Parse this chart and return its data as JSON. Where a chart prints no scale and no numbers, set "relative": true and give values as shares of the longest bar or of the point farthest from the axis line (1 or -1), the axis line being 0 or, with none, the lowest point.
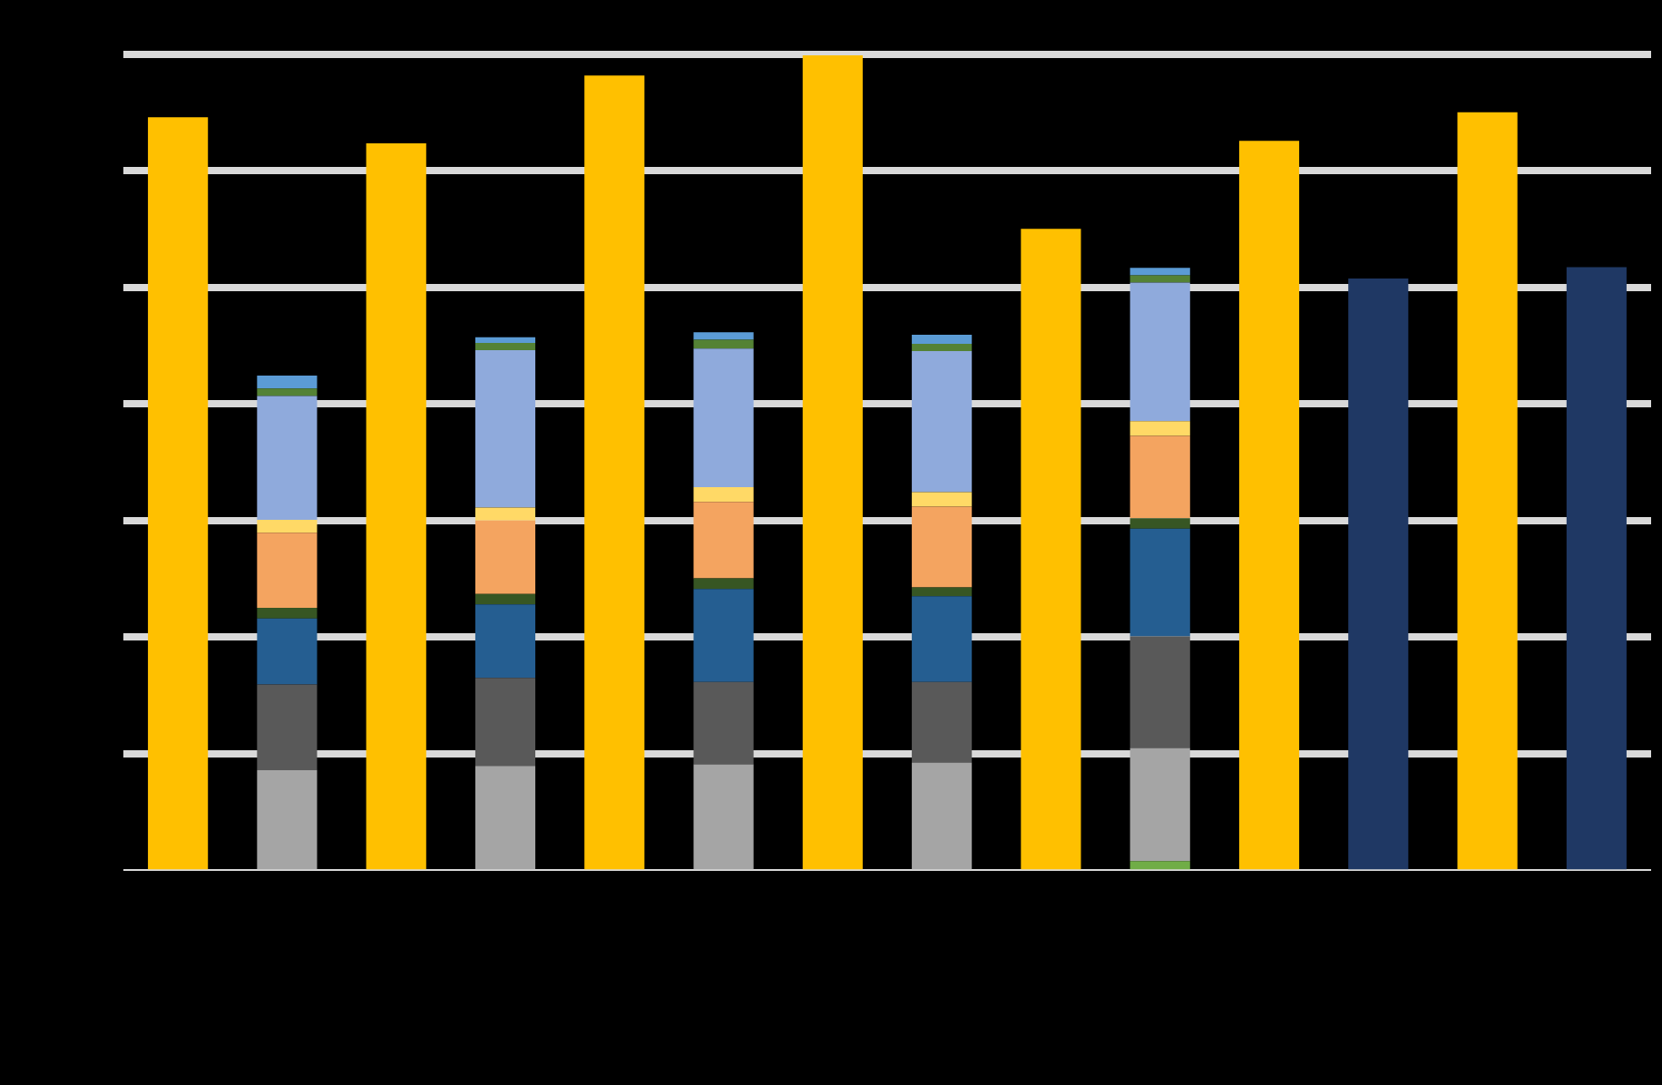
{
  "chart_data": {
    "type": "bar",
    "relative": true,
    "stacked": true,
    "grid": "y",
    "legend": false,
    "categories": [
      null,
      null,
      null,
      null,
      null,
      null,
      null,
      null,
      null,
      null,
      null,
      null,
      null,
      null
    ],
    "series": [
      {
        "color": "#ffc000",
        "values": [
          0.924,
          null,
          0.892,
          null,
          0.975,
          null,
          1,
          null,
          0.787,
          null,
          0.895,
          null,
          0.93,
          null
        ]
      },
      {
        "color": "#1f3864",
        "values": [
          null,
          null,
          null,
          null,
          null,
          null,
          null,
          null,
          null,
          null,
          null,
          0.726,
          null,
          0.74
        ]
      },
      {
        "color": "#70ad47",
        "values": [
          null,
          0,
          null,
          0,
          null,
          0,
          null,
          0,
          null,
          0.011,
          null,
          null,
          null,
          null
        ]
      },
      {
        "color": "#a5a5a5",
        "values": [
          null,
          0.123,
          null,
          0.128,
          null,
          0.13,
          null,
          0.132,
          null,
          0.139,
          null,
          null,
          null,
          null
        ]
      },
      {
        "color": "#595959",
        "values": [
          null,
          0.105,
          null,
          0.108,
          null,
          0.101,
          null,
          0.099,
          null,
          0.137,
          null,
          null,
          null,
          null
        ]
      },
      {
        "color": "#255e91",
        "values": [
          null,
          0.081,
          null,
          0.09,
          null,
          0.114,
          null,
          0.105,
          null,
          0.132,
          null,
          null,
          null,
          null
        ]
      },
      {
        "color": "#375623",
        "values": [
          null,
          0.013,
          null,
          0.013,
          null,
          0.013,
          null,
          0.011,
          null,
          0.013,
          null,
          null,
          null,
          null
        ]
      },
      {
        "color": "#f4a460",
        "values": [
          null,
          0.092,
          null,
          0.09,
          null,
          0.094,
          null,
          0.099,
          null,
          0.101,
          null,
          null,
          null,
          null
        ]
      },
      {
        "color": "#ffd966",
        "values": [
          null,
          0.016,
          null,
          0.016,
          null,
          0.018,
          null,
          0.018,
          null,
          0.018,
          null,
          null,
          null,
          null
        ]
      },
      {
        "color": "#8faadc",
        "values": [
          null,
          0.152,
          null,
          0.193,
          null,
          0.17,
          null,
          0.173,
          null,
          0.17,
          null,
          null,
          null,
          null
        ]
      },
      {
        "color": "#548235",
        "values": [
          null,
          0.009,
          null,
          0.009,
          null,
          0.011,
          null,
          0.009,
          null,
          0.009,
          null,
          null,
          null,
          null
        ]
      },
      {
        "color": "#5b9bd5",
        "values": [
          null,
          0.016,
          null,
          0.007,
          null,
          0.009,
          null,
          0.011,
          null,
          0.009,
          null,
          null,
          null,
          null
        ]
      }
    ]
  }
}
